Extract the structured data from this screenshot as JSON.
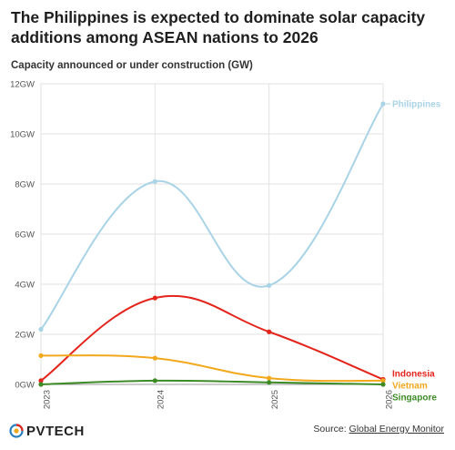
{
  "chart_data": {
    "type": "line",
    "title": "The Philippines is expected to dominate solar capacity additions among ASEAN nations to 2026",
    "subtitle": "Capacity announced or under construction (GW)",
    "x": [
      "2023",
      "2024",
      "2025",
      "2026"
    ],
    "yticks": [
      "0GW",
      "2GW",
      "4GW",
      "6GW",
      "8GW",
      "10GW",
      "12GW"
    ],
    "ylim": [
      0,
      12
    ],
    "grid": "horizontal",
    "legend": "inline-right",
    "series": [
      {
        "name": "Philippines",
        "color": "#a9d3e6",
        "values": [
          2.2,
          8.1,
          3.95,
          11.2
        ]
      },
      {
        "name": "Indonesia",
        "color": "#e3241b",
        "values": [
          0.15,
          3.45,
          2.1,
          0.2
        ]
      },
      {
        "name": "Vietnam",
        "color": "#f2a81d",
        "values": [
          1.15,
          1.05,
          0.25,
          0.15
        ]
      },
      {
        "name": "Singapore",
        "color": "#3d8b27",
        "values": [
          0.0,
          0.15,
          0.08,
          0.0
        ]
      }
    ]
  },
  "footer": {
    "logo_text": "PVTECH",
    "source_prefix": "Source: ",
    "source_link": "Global Energy Monitor"
  }
}
